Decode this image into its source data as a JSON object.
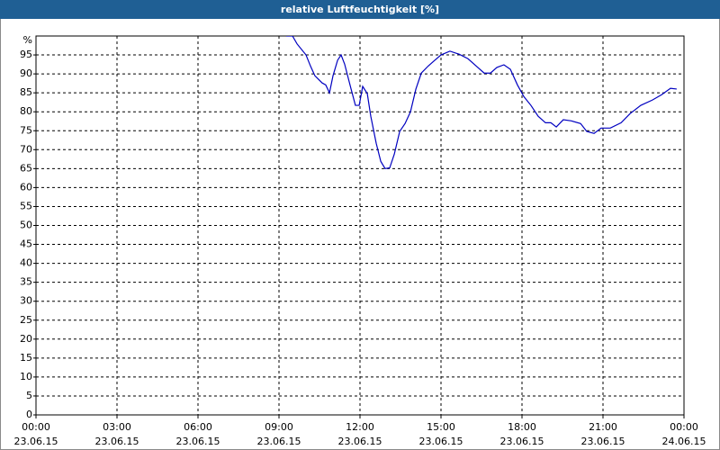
{
  "chart_data": {
    "type": "line",
    "title": "relative Luftfeuchtigkeit [%]",
    "y_unit": "%",
    "x": [
      9.27,
      9.5,
      9.67,
      10.0,
      10.17,
      10.33,
      10.6,
      10.73,
      10.87,
      11.0,
      11.17,
      11.3,
      11.43,
      11.67,
      11.83,
      11.97,
      12.1,
      12.27,
      12.4,
      12.6,
      12.77,
      12.93,
      13.1,
      13.27,
      13.47,
      13.67,
      13.87,
      14.07,
      14.27,
      14.53,
      14.77,
      15.0,
      15.33,
      15.67,
      16.0,
      16.33,
      16.6,
      16.83,
      17.07,
      17.33,
      17.57,
      17.83,
      18.07,
      18.33,
      18.6,
      18.87,
      19.07,
      19.27,
      19.53,
      19.83,
      20.17,
      20.4,
      20.67,
      20.93,
      21.27,
      21.67,
      22.0,
      22.4,
      22.83,
      23.17,
      23.5,
      23.73
    ],
    "series": [
      {
        "name": "relative Luftfeuchtigkeit",
        "color": "#0000c0",
        "values": [
          100,
          100,
          97.9,
          95,
          92,
          89.5,
          87.6,
          87.1,
          85,
          89.5,
          93.6,
          95,
          92.6,
          86,
          81.7,
          81.7,
          86.7,
          84.8,
          78.8,
          71.7,
          66.9,
          65,
          65.2,
          68.8,
          74.8,
          76.9,
          80,
          86,
          90.2,
          92.1,
          93.6,
          95,
          96,
          95.2,
          94,
          91.9,
          90.2,
          90.2,
          91.7,
          92.4,
          91.2,
          87.1,
          84,
          81.7,
          78.8,
          77.1,
          77.1,
          76,
          77.9,
          77.6,
          76.9,
          74.8,
          74.3,
          75.7,
          75.7,
          77.1,
          79.5,
          81.7,
          83.1,
          84.5,
          86.2,
          86
        ]
      }
    ],
    "xlim": [
      0,
      24
    ],
    "xticks": [
      {
        "value": 0,
        "label": "00:00",
        "date": "23.06.15"
      },
      {
        "value": 3,
        "label": "03:00",
        "date": "23.06.15"
      },
      {
        "value": 6,
        "label": "06:00",
        "date": "23.06.15"
      },
      {
        "value": 9,
        "label": "09:00",
        "date": "23.06.15"
      },
      {
        "value": 12,
        "label": "12:00",
        "date": "23.06.15"
      },
      {
        "value": 15,
        "label": "15:00",
        "date": "23.06.15"
      },
      {
        "value": 18,
        "label": "18:00",
        "date": "23.06.15"
      },
      {
        "value": 21,
        "label": "21:00",
        "date": "23.06.15"
      },
      {
        "value": 24,
        "label": "00:00",
        "date": "24.06.15"
      }
    ],
    "ylim": [
      0,
      100
    ],
    "yticks": [
      0,
      5,
      10,
      15,
      20,
      25,
      30,
      35,
      40,
      45,
      50,
      55,
      60,
      65,
      70,
      75,
      80,
      85,
      90,
      95
    ],
    "grid": true
  }
}
